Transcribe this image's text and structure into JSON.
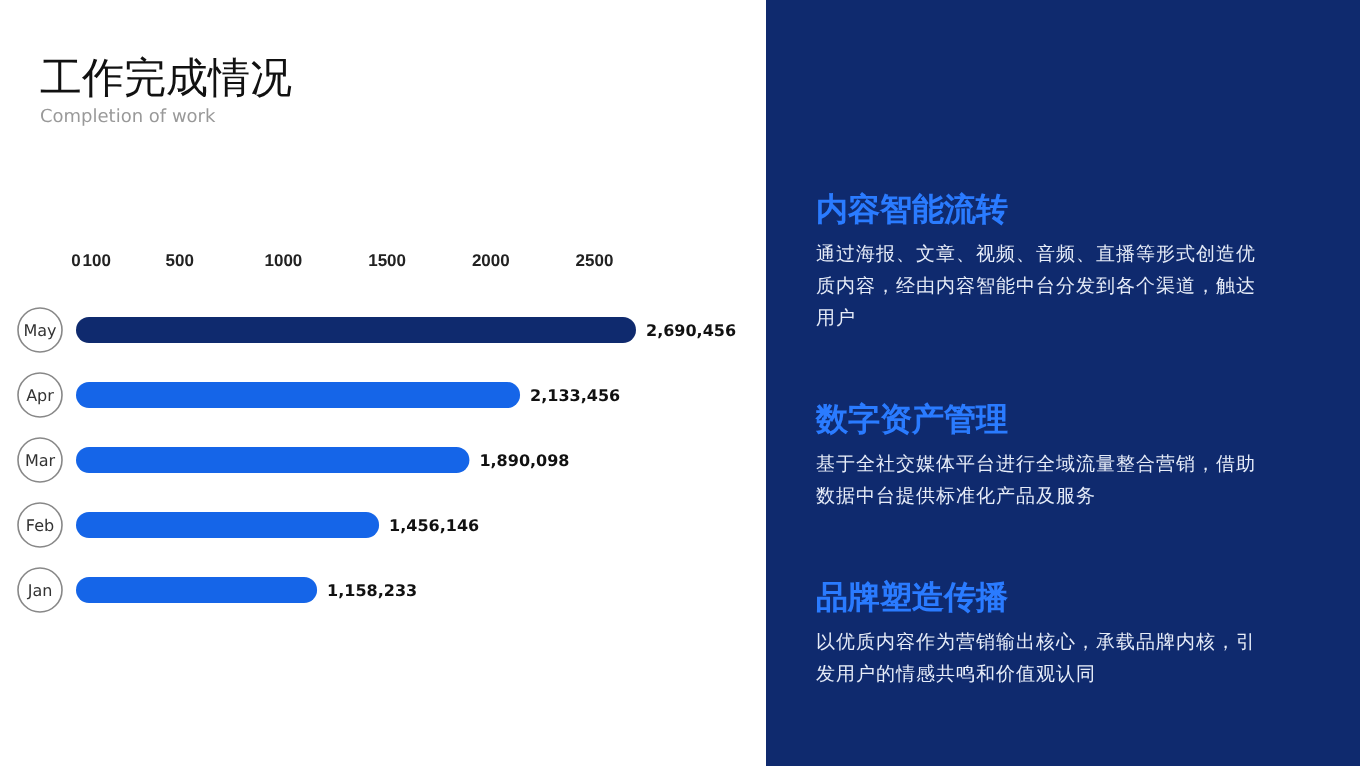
{
  "chart_data": {
    "type": "bar",
    "orientation": "horizontal",
    "title": "工作完成情况",
    "subtitle": "Completion of work",
    "categories": [
      "May",
      "Apr",
      "Mar",
      "Feb",
      "Jan"
    ],
    "values": [
      2690456,
      2133456,
      1890098,
      1456146,
      1158233
    ],
    "colors": [
      "#0f2a6e",
      "#1565e8",
      "#1565e8",
      "#1565e8",
      "#1565e8"
    ],
    "value_labels": [
      "2,690,456",
      "2,133,456",
      "1,890,098",
      "1,456,146",
      "1,158,233"
    ],
    "x2lim": [
      0,
      2700
    ],
    "x2ticks": [
      0,
      100,
      500,
      1000,
      1500,
      2000,
      2500
    ],
    "grid": false,
    "annotations": [
      "内容智能流转",
      "通过海报、文章、视频、音频、直播等形式创造优质内容，经由内容智能中台分发到各个渠道，触达用户",
      "数字资产管理",
      "基于全社交媒体平台进行全域流量整合营销，借助数据中台提供标准化产品及服务",
      "品牌塑造传播",
      "以优质内容作为营销输出核心，承载品牌内核，引发用户的情感共鸣和价值观认同"
    ]
  }
}
